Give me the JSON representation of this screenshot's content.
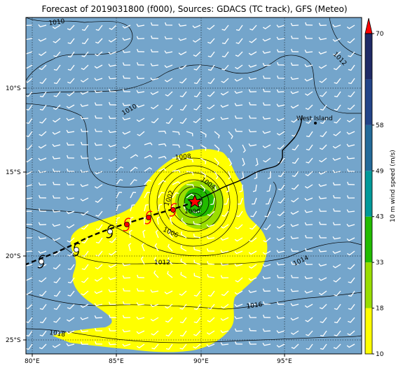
{
  "title": "Forecast of 2019031800 (f000), Sources: GDACS (TC track), GFS (Meteo)",
  "map": {
    "lon_range": [
      79.5,
      99.5
    ],
    "lat_range": [
      -26,
      -6
    ],
    "lon_ticks": [
      "80°E",
      "85°E",
      "90°E",
      "95°E"
    ],
    "lat_ticks": [
      "10°S",
      "15°S",
      "20°S",
      "25°S"
    ],
    "place_label": "West Island",
    "ocean_color": "#74a5cb",
    "grid": true
  },
  "isobars": [
    "1010",
    "1012",
    "1010",
    "1008",
    "1004",
    "1002",
    "1000",
    "1006",
    "1012",
    "1014",
    "1016",
    "1018"
  ],
  "colorbar": {
    "label": "10 m wind speed (m/s)",
    "ticks": [
      "10",
      "18",
      "33",
      "43",
      "49",
      "58",
      "70"
    ],
    "colors": [
      "#ffff00",
      "#99dd00",
      "#22bb00",
      "#009999",
      "#236a99",
      "#224488",
      "#1f2a66"
    ],
    "extend_color": "#ff0000"
  },
  "track": {
    "current": {
      "lon": 89.6,
      "lat": -16.8
    },
    "past": [
      [
        89.6,
        -16.8
      ],
      [
        95.7,
        -11.7
      ]
    ],
    "forecast": [
      [
        89.6,
        -16.8
      ],
      [
        79.5,
        -20.6
      ]
    ]
  }
}
